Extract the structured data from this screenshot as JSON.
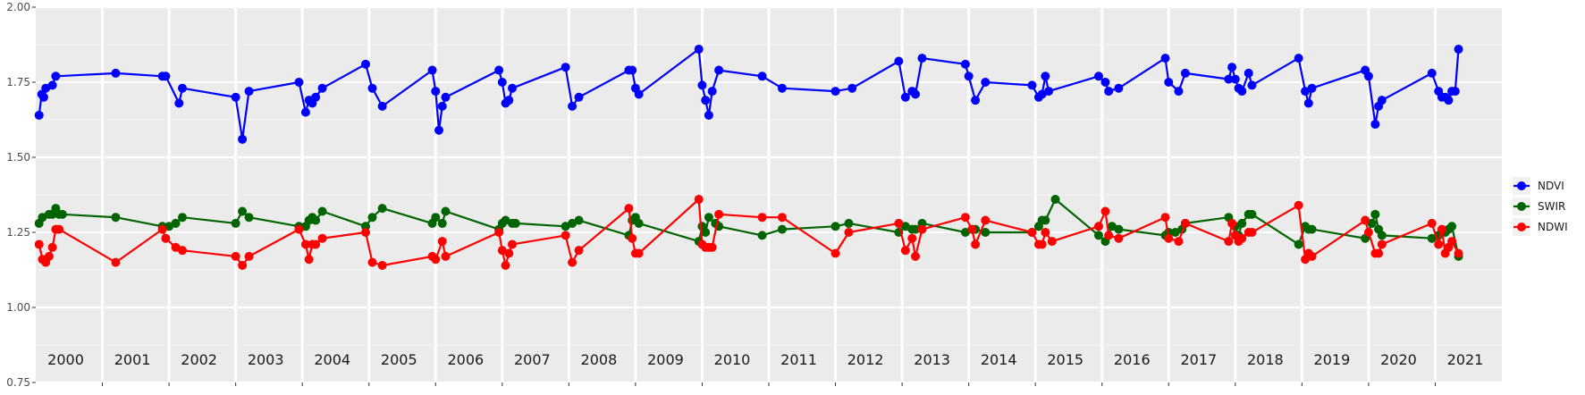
{
  "chart_data": {
    "type": "line",
    "title": "",
    "xlabel": "",
    "ylabel": "",
    "xlim": [
      2000,
      2022
    ],
    "ylim": [
      0.75,
      2.0
    ],
    "yticks": [
      0.75,
      1.0,
      1.25,
      1.5,
      1.75,
      2.0
    ],
    "ytick_labels": [
      "0.75",
      "1.00",
      "1.25",
      "1.50",
      "1.75",
      "2.00"
    ],
    "year_labels": [
      "2000",
      "2001",
      "2002",
      "2003",
      "2004",
      "2005",
      "2006",
      "2007",
      "2008",
      "2009",
      "2010",
      "2011",
      "2012",
      "2013",
      "2014",
      "2015",
      "2016",
      "2017",
      "2018",
      "2019",
      "2020",
      "2021"
    ],
    "grid": true,
    "legend_position": "right",
    "series": [
      {
        "name": "NDVI",
        "color": "#0000ff",
        "points": [
          [
            2000.0,
            1.64
          ],
          [
            2000.04,
            1.71
          ],
          [
            2000.07,
            1.7
          ],
          [
            2000.1,
            1.73
          ],
          [
            2000.2,
            1.74
          ],
          [
            2000.25,
            1.77
          ],
          [
            2001.15,
            1.78
          ],
          [
            2001.85,
            1.77
          ],
          [
            2001.9,
            1.77
          ],
          [
            2002.1,
            1.68
          ],
          [
            2002.15,
            1.73
          ],
          [
            2002.95,
            1.7
          ],
          [
            2003.05,
            1.56
          ],
          [
            2003.15,
            1.72
          ],
          [
            2003.9,
            1.75
          ],
          [
            2004.0,
            1.65
          ],
          [
            2004.05,
            1.69
          ],
          [
            2004.1,
            1.68
          ],
          [
            2004.15,
            1.7
          ],
          [
            2004.25,
            1.73
          ],
          [
            2004.9,
            1.81
          ],
          [
            2005.0,
            1.73
          ],
          [
            2005.15,
            1.67
          ],
          [
            2005.9,
            1.79
          ],
          [
            2005.95,
            1.72
          ],
          [
            2006.0,
            1.59
          ],
          [
            2006.05,
            1.67
          ],
          [
            2006.1,
            1.7
          ],
          [
            2006.9,
            1.79
          ],
          [
            2006.95,
            1.75
          ],
          [
            2007.0,
            1.68
          ],
          [
            2007.05,
            1.69
          ],
          [
            2007.1,
            1.73
          ],
          [
            2007.9,
            1.8
          ],
          [
            2008.0,
            1.67
          ],
          [
            2008.1,
            1.7
          ],
          [
            2008.85,
            1.79
          ],
          [
            2008.9,
            1.79
          ],
          [
            2008.95,
            1.73
          ],
          [
            2009.0,
            1.71
          ],
          [
            2009.9,
            1.86
          ],
          [
            2009.95,
            1.74
          ],
          [
            2010.0,
            1.69
          ],
          [
            2010.05,
            1.64
          ],
          [
            2010.1,
            1.72
          ],
          [
            2010.2,
            1.79
          ],
          [
            2010.85,
            1.77
          ],
          [
            2011.15,
            1.73
          ],
          [
            2011.95,
            1.72
          ],
          [
            2012.2,
            1.73
          ],
          [
            2012.9,
            1.82
          ],
          [
            2013.0,
            1.7
          ],
          [
            2013.1,
            1.72
          ],
          [
            2013.15,
            1.71
          ],
          [
            2013.25,
            1.83
          ],
          [
            2013.9,
            1.81
          ],
          [
            2013.95,
            1.77
          ],
          [
            2014.05,
            1.69
          ],
          [
            2014.2,
            1.75
          ],
          [
            2014.9,
            1.74
          ],
          [
            2015.0,
            1.7
          ],
          [
            2015.05,
            1.71
          ],
          [
            2015.1,
            1.77
          ],
          [
            2015.15,
            1.72
          ],
          [
            2015.9,
            1.77
          ],
          [
            2016.0,
            1.75
          ],
          [
            2016.05,
            1.72
          ],
          [
            2016.2,
            1.73
          ],
          [
            2016.9,
            1.83
          ],
          [
            2016.95,
            1.75
          ],
          [
            2017.1,
            1.72
          ],
          [
            2017.2,
            1.78
          ],
          [
            2017.85,
            1.76
          ],
          [
            2017.9,
            1.8
          ],
          [
            2017.95,
            1.76
          ],
          [
            2018.0,
            1.73
          ],
          [
            2018.05,
            1.72
          ],
          [
            2018.15,
            1.78
          ],
          [
            2018.2,
            1.74
          ],
          [
            2018.9,
            1.83
          ],
          [
            2019.0,
            1.72
          ],
          [
            2019.05,
            1.68
          ],
          [
            2019.1,
            1.73
          ],
          [
            2019.9,
            1.79
          ],
          [
            2019.95,
            1.77
          ],
          [
            2020.05,
            1.61
          ],
          [
            2020.1,
            1.67
          ],
          [
            2020.15,
            1.69
          ],
          [
            2020.9,
            1.78
          ],
          [
            2021.0,
            1.72
          ],
          [
            2021.05,
            1.7
          ],
          [
            2021.1,
            1.7
          ],
          [
            2021.15,
            1.69
          ],
          [
            2021.2,
            1.72
          ],
          [
            2021.25,
            1.72
          ],
          [
            2021.3,
            1.86
          ]
        ]
      },
      {
        "name": "SWIR",
        "color": "#006400",
        "points": [
          [
            2000.0,
            1.28
          ],
          [
            2000.05,
            1.3
          ],
          [
            2000.15,
            1.31
          ],
          [
            2000.2,
            1.31
          ],
          [
            2000.25,
            1.33
          ],
          [
            2000.3,
            1.31
          ],
          [
            2000.35,
            1.31
          ],
          [
            2001.15,
            1.3
          ],
          [
            2001.85,
            1.27
          ],
          [
            2001.95,
            1.27
          ],
          [
            2002.05,
            1.28
          ],
          [
            2002.15,
            1.3
          ],
          [
            2002.95,
            1.28
          ],
          [
            2003.05,
            1.32
          ],
          [
            2003.15,
            1.3
          ],
          [
            2003.9,
            1.27
          ],
          [
            2004.0,
            1.27
          ],
          [
            2004.05,
            1.29
          ],
          [
            2004.1,
            1.3
          ],
          [
            2004.15,
            1.29
          ],
          [
            2004.25,
            1.32
          ],
          [
            2004.9,
            1.27
          ],
          [
            2005.0,
            1.3
          ],
          [
            2005.15,
            1.33
          ],
          [
            2005.9,
            1.28
          ],
          [
            2005.95,
            1.3
          ],
          [
            2006.05,
            1.28
          ],
          [
            2006.1,
            1.32
          ],
          [
            2006.9,
            1.26
          ],
          [
            2006.95,
            1.28
          ],
          [
            2007.0,
            1.29
          ],
          [
            2007.1,
            1.28
          ],
          [
            2007.15,
            1.28
          ],
          [
            2007.9,
            1.27
          ],
          [
            2008.0,
            1.28
          ],
          [
            2008.1,
            1.29
          ],
          [
            2008.85,
            1.24
          ],
          [
            2008.9,
            1.29
          ],
          [
            2008.95,
            1.3
          ],
          [
            2009.0,
            1.28
          ],
          [
            2009.9,
            1.22
          ],
          [
            2009.95,
            1.27
          ],
          [
            2010.0,
            1.25
          ],
          [
            2010.05,
            1.3
          ],
          [
            2010.15,
            1.28
          ],
          [
            2010.2,
            1.27
          ],
          [
            2010.85,
            1.24
          ],
          [
            2011.15,
            1.26
          ],
          [
            2011.95,
            1.27
          ],
          [
            2012.15,
            1.28
          ],
          [
            2012.9,
            1.25
          ],
          [
            2013.0,
            1.27
          ],
          [
            2013.1,
            1.26
          ],
          [
            2013.15,
            1.26
          ],
          [
            2013.25,
            1.28
          ],
          [
            2013.9,
            1.25
          ],
          [
            2014.0,
            1.26
          ],
          [
            2014.05,
            1.26
          ],
          [
            2014.2,
            1.25
          ],
          [
            2014.9,
            1.25
          ],
          [
            2015.0,
            1.27
          ],
          [
            2015.05,
            1.29
          ],
          [
            2015.1,
            1.29
          ],
          [
            2015.25,
            1.36
          ],
          [
            2015.9,
            1.24
          ],
          [
            2016.0,
            1.22
          ],
          [
            2016.1,
            1.27
          ],
          [
            2016.2,
            1.26
          ],
          [
            2016.9,
            1.24
          ],
          [
            2016.95,
            1.25
          ],
          [
            2017.05,
            1.25
          ],
          [
            2017.15,
            1.26
          ],
          [
            2017.2,
            1.28
          ],
          [
            2017.85,
            1.3
          ],
          [
            2017.95,
            1.27
          ],
          [
            2018.0,
            1.24
          ],
          [
            2018.05,
            1.28
          ],
          [
            2018.15,
            1.31
          ],
          [
            2018.2,
            1.31
          ],
          [
            2018.9,
            1.21
          ],
          [
            2019.0,
            1.27
          ],
          [
            2019.05,
            1.26
          ],
          [
            2019.1,
            1.26
          ],
          [
            2019.9,
            1.23
          ],
          [
            2020.0,
            1.28
          ],
          [
            2020.05,
            1.31
          ],
          [
            2020.1,
            1.26
          ],
          [
            2020.15,
            1.24
          ],
          [
            2020.9,
            1.23
          ],
          [
            2021.0,
            1.24
          ],
          [
            2021.05,
            1.25
          ],
          [
            2021.1,
            1.25
          ],
          [
            2021.15,
            1.26
          ],
          [
            2021.2,
            1.27
          ],
          [
            2021.3,
            1.17
          ]
        ]
      },
      {
        "name": "NDWI",
        "color": "#ff0000",
        "points": [
          [
            2000.0,
            1.21
          ],
          [
            2000.05,
            1.16
          ],
          [
            2000.1,
            1.15
          ],
          [
            2000.15,
            1.17
          ],
          [
            2000.2,
            1.2
          ],
          [
            2000.25,
            1.26
          ],
          [
            2000.3,
            1.26
          ],
          [
            2001.15,
            1.15
          ],
          [
            2001.85,
            1.26
          ],
          [
            2001.9,
            1.23
          ],
          [
            2002.05,
            1.2
          ],
          [
            2002.15,
            1.19
          ],
          [
            2002.95,
            1.17
          ],
          [
            2003.05,
            1.14
          ],
          [
            2003.15,
            1.17
          ],
          [
            2003.9,
            1.26
          ],
          [
            2004.0,
            1.21
          ],
          [
            2004.05,
            1.16
          ],
          [
            2004.1,
            1.21
          ],
          [
            2004.15,
            1.21
          ],
          [
            2004.25,
            1.23
          ],
          [
            2004.9,
            1.25
          ],
          [
            2005.0,
            1.15
          ],
          [
            2005.15,
            1.14
          ],
          [
            2005.9,
            1.17
          ],
          [
            2005.95,
            1.16
          ],
          [
            2006.05,
            1.22
          ],
          [
            2006.1,
            1.17
          ],
          [
            2006.9,
            1.25
          ],
          [
            2006.95,
            1.19
          ],
          [
            2007.0,
            1.14
          ],
          [
            2007.05,
            1.18
          ],
          [
            2007.1,
            1.21
          ],
          [
            2007.9,
            1.24
          ],
          [
            2008.0,
            1.15
          ],
          [
            2008.1,
            1.19
          ],
          [
            2008.85,
            1.33
          ],
          [
            2008.9,
            1.23
          ],
          [
            2008.95,
            1.18
          ],
          [
            2009.0,
            1.18
          ],
          [
            2009.9,
            1.36
          ],
          [
            2009.95,
            1.21
          ],
          [
            2010.0,
            1.2
          ],
          [
            2010.05,
            1.2
          ],
          [
            2010.1,
            1.2
          ],
          [
            2010.2,
            1.31
          ],
          [
            2010.85,
            1.3
          ],
          [
            2011.15,
            1.3
          ],
          [
            2011.95,
            1.18
          ],
          [
            2012.15,
            1.25
          ],
          [
            2012.9,
            1.28
          ],
          [
            2013.0,
            1.19
          ],
          [
            2013.1,
            1.23
          ],
          [
            2013.15,
            1.17
          ],
          [
            2013.25,
            1.26
          ],
          [
            2013.9,
            1.3
          ],
          [
            2014.0,
            1.26
          ],
          [
            2014.05,
            1.21
          ],
          [
            2014.2,
            1.29
          ],
          [
            2014.9,
            1.25
          ],
          [
            2015.0,
            1.21
          ],
          [
            2015.05,
            1.21
          ],
          [
            2015.1,
            1.25
          ],
          [
            2015.2,
            1.22
          ],
          [
            2015.9,
            1.27
          ],
          [
            2016.0,
            1.32
          ],
          [
            2016.05,
            1.24
          ],
          [
            2016.2,
            1.23
          ],
          [
            2016.9,
            1.3
          ],
          [
            2016.95,
            1.23
          ],
          [
            2017.1,
            1.22
          ],
          [
            2017.2,
            1.28
          ],
          [
            2017.85,
            1.22
          ],
          [
            2017.9,
            1.28
          ],
          [
            2017.95,
            1.24
          ],
          [
            2018.0,
            1.22
          ],
          [
            2018.05,
            1.23
          ],
          [
            2018.15,
            1.25
          ],
          [
            2018.2,
            1.25
          ],
          [
            2018.9,
            1.34
          ],
          [
            2019.0,
            1.16
          ],
          [
            2019.05,
            1.18
          ],
          [
            2019.1,
            1.17
          ],
          [
            2019.9,
            1.29
          ],
          [
            2019.95,
            1.25
          ],
          [
            2020.05,
            1.18
          ],
          [
            2020.1,
            1.18
          ],
          [
            2020.15,
            1.21
          ],
          [
            2020.9,
            1.28
          ],
          [
            2021.0,
            1.21
          ],
          [
            2021.05,
            1.26
          ],
          [
            2021.1,
            1.18
          ],
          [
            2021.15,
            1.2
          ],
          [
            2021.2,
            1.22
          ],
          [
            2021.3,
            1.18
          ]
        ]
      }
    ]
  }
}
